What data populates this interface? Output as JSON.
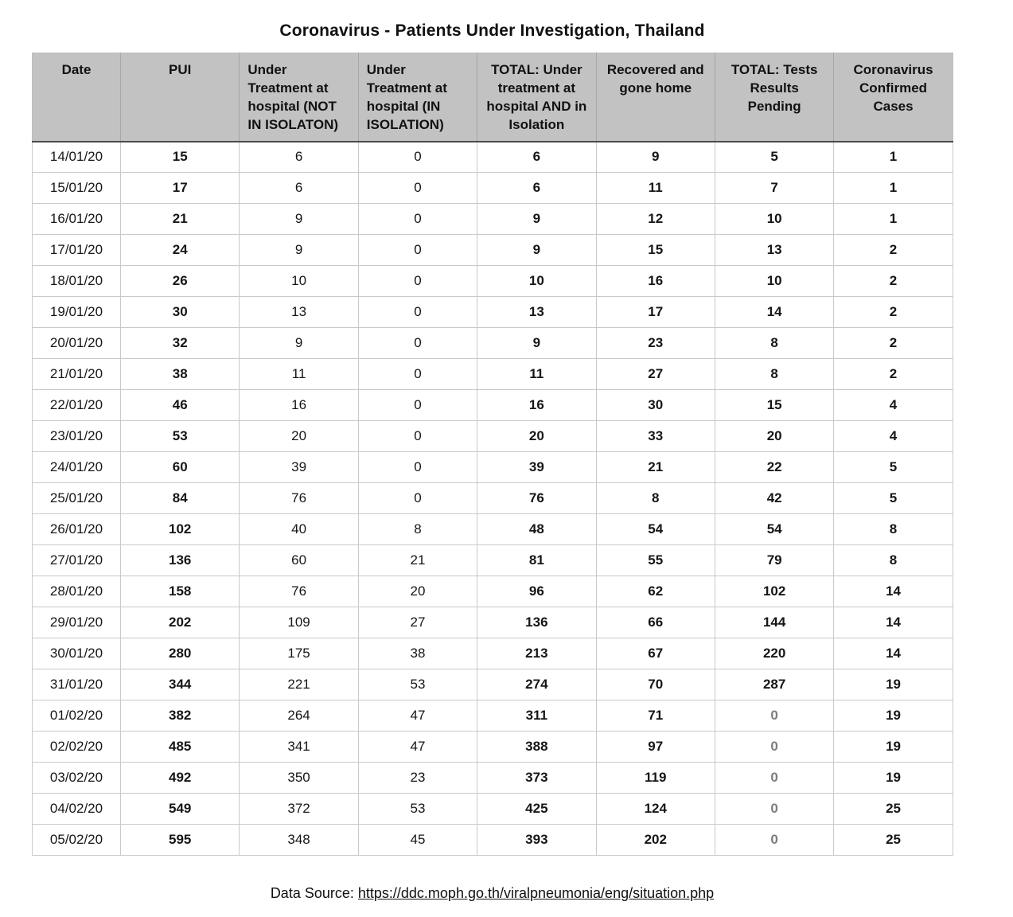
{
  "title": "Coronavirus - Patients Under Investigation, Thailand",
  "chart_data": {
    "type": "table",
    "title": "Coronavirus - Patients Under Investigation, Thailand",
    "muted_zero_column": "tests_pending",
    "columns": [
      {
        "key": "date",
        "label": "Date",
        "align": "center",
        "bold": false
      },
      {
        "key": "pui",
        "label": "PUI",
        "align": "center",
        "bold": true
      },
      {
        "key": "under_treatment_not_isolation",
        "label": "Under Treatment at hospital (NOT IN ISOLATON)",
        "align": "left",
        "bold": false
      },
      {
        "key": "under_treatment_isolation",
        "label": "Under Treatment at hospital (IN ISOLATION)",
        "align": "left",
        "bold": false
      },
      {
        "key": "total_under_treatment",
        "label": "TOTAL: Under treatment at hospital AND in Isolation",
        "align": "center",
        "bold": true
      },
      {
        "key": "recovered_gone_home",
        "label": "Recovered and gone home",
        "align": "center",
        "bold": true
      },
      {
        "key": "tests_pending",
        "label": "TOTAL: Tests Results Pending",
        "align": "center",
        "bold": true
      },
      {
        "key": "confirmed_cases",
        "label": "Coronavirus Confirmed Cases",
        "align": "center",
        "bold": true
      }
    ],
    "rows": [
      [
        "14/01/20",
        15,
        6,
        0,
        6,
        9,
        5,
        1
      ],
      [
        "15/01/20",
        17,
        6,
        0,
        6,
        11,
        7,
        1
      ],
      [
        "16/01/20",
        21,
        9,
        0,
        9,
        12,
        10,
        1
      ],
      [
        "17/01/20",
        24,
        9,
        0,
        9,
        15,
        13,
        2
      ],
      [
        "18/01/20",
        26,
        10,
        0,
        10,
        16,
        10,
        2
      ],
      [
        "19/01/20",
        30,
        13,
        0,
        13,
        17,
        14,
        2
      ],
      [
        "20/01/20",
        32,
        9,
        0,
        9,
        23,
        8,
        2
      ],
      [
        "21/01/20",
        38,
        11,
        0,
        11,
        27,
        8,
        2
      ],
      [
        "22/01/20",
        46,
        16,
        0,
        16,
        30,
        15,
        4
      ],
      [
        "23/01/20",
        53,
        20,
        0,
        20,
        33,
        20,
        4
      ],
      [
        "24/01/20",
        60,
        39,
        0,
        39,
        21,
        22,
        5
      ],
      [
        "25/01/20",
        84,
        76,
        0,
        76,
        8,
        42,
        5
      ],
      [
        "26/01/20",
        102,
        40,
        8,
        48,
        54,
        54,
        8
      ],
      [
        "27/01/20",
        136,
        60,
        21,
        81,
        55,
        79,
        8
      ],
      [
        "28/01/20",
        158,
        76,
        20,
        96,
        62,
        102,
        14
      ],
      [
        "29/01/20",
        202,
        109,
        27,
        136,
        66,
        144,
        14
      ],
      [
        "30/01/20",
        280,
        175,
        38,
        213,
        67,
        220,
        14
      ],
      [
        "31/01/20",
        344,
        221,
        53,
        274,
        70,
        287,
        19
      ],
      [
        "01/02/20",
        382,
        264,
        47,
        311,
        71,
        0,
        19
      ],
      [
        "02/02/20",
        485,
        341,
        47,
        388,
        97,
        0,
        19
      ],
      [
        "03/02/20",
        492,
        350,
        23,
        373,
        119,
        0,
        19
      ],
      [
        "04/02/20",
        549,
        372,
        53,
        425,
        124,
        0,
        25
      ],
      [
        "05/02/20",
        595,
        348,
        45,
        393,
        202,
        0,
        25
      ]
    ]
  },
  "footer": {
    "label": "Data Source: ",
    "url": "https://ddc.moph.go.th/viralpneumonia/eng/situation.php"
  },
  "colors": {
    "header_bg": "#c2c2c2",
    "header_bottom_border": "#4a4a4a",
    "grid_line": "#c9c9c9",
    "muted_value": "#7d7d7d",
    "text": "#111111"
  }
}
